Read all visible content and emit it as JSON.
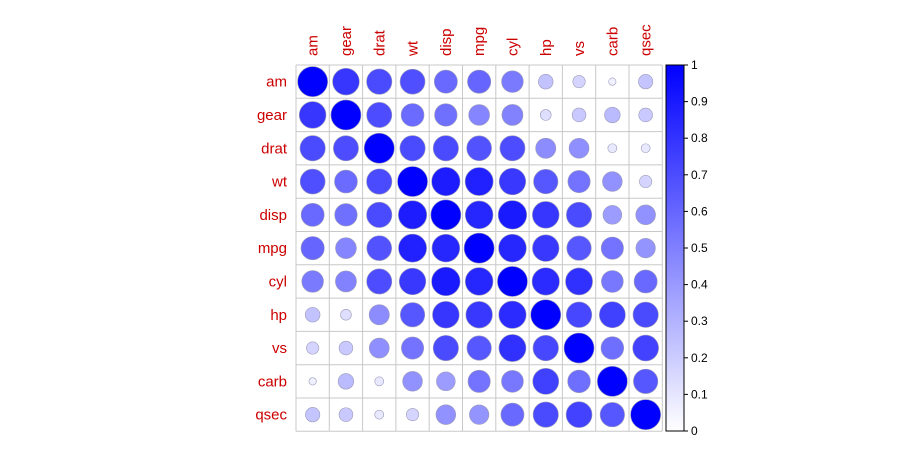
{
  "chart_data": {
    "type": "heatmap",
    "subtype": "correlation-circles",
    "variables": [
      "am",
      "gear",
      "drat",
      "wt",
      "disp",
      "mpg",
      "cyl",
      "hp",
      "vs",
      "carb",
      "qsec"
    ],
    "matrix": [
      [
        1.0,
        0.79,
        0.71,
        0.69,
        0.59,
        0.6,
        0.52,
        0.24,
        0.17,
        0.06,
        0.23
      ],
      [
        0.79,
        1.0,
        0.7,
        0.58,
        0.56,
        0.48,
        0.49,
        0.13,
        0.21,
        0.27,
        0.21
      ],
      [
        0.71,
        0.7,
        1.0,
        0.71,
        0.71,
        0.68,
        0.7,
        0.45,
        0.44,
        0.09,
        0.09
      ],
      [
        0.69,
        0.58,
        0.71,
        1.0,
        0.89,
        0.87,
        0.78,
        0.66,
        0.55,
        0.43,
        0.17
      ],
      [
        0.59,
        0.56,
        0.71,
        0.89,
        1.0,
        0.85,
        0.9,
        0.79,
        0.71,
        0.39,
        0.43
      ],
      [
        0.6,
        0.48,
        0.68,
        0.87,
        0.85,
        1.0,
        0.85,
        0.78,
        0.66,
        0.55,
        0.42
      ],
      [
        0.52,
        0.49,
        0.7,
        0.78,
        0.9,
        0.85,
        1.0,
        0.83,
        0.81,
        0.53,
        0.59
      ],
      [
        0.24,
        0.13,
        0.45,
        0.66,
        0.79,
        0.78,
        0.83,
        1.0,
        0.72,
        0.75,
        0.71
      ],
      [
        0.17,
        0.21,
        0.44,
        0.55,
        0.71,
        0.66,
        0.81,
        0.72,
        1.0,
        0.57,
        0.74
      ],
      [
        0.06,
        0.27,
        0.09,
        0.43,
        0.39,
        0.55,
        0.53,
        0.75,
        0.57,
        1.0,
        0.66
      ],
      [
        0.23,
        0.21,
        0.09,
        0.17,
        0.43,
        0.42,
        0.59,
        0.71,
        0.74,
        0.66,
        1.0
      ]
    ],
    "color_scale": {
      "min": 0,
      "max": 1,
      "low_color": "#FFFFFF",
      "high_color": "#0000FF"
    },
    "colorbar_ticks": [
      "0",
      "0.1",
      "0.2",
      "0.3",
      "0.4",
      "0.5",
      "0.6",
      "0.7",
      "0.8",
      "0.9",
      "1"
    ],
    "label_color": "#CC0000",
    "grid": true,
    "legend_position": "right"
  }
}
